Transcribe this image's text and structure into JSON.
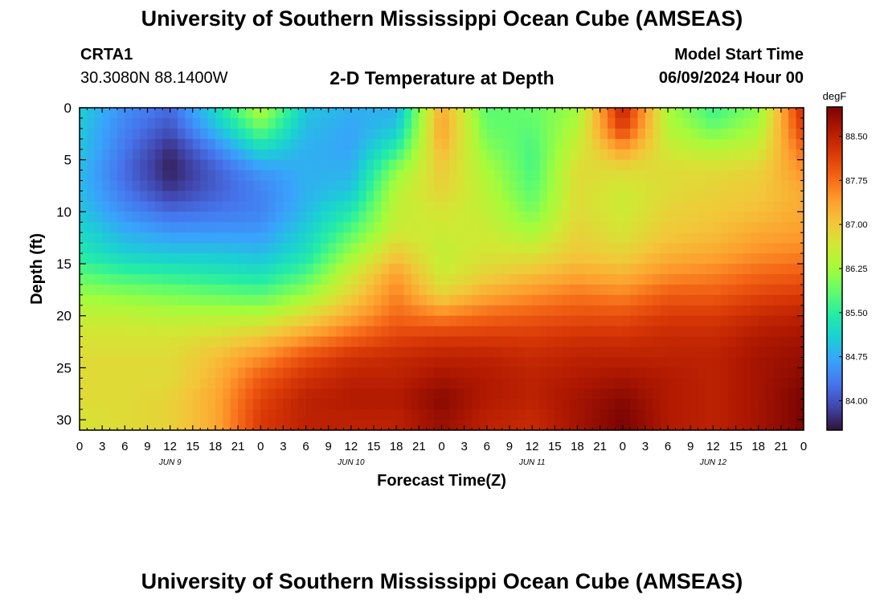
{
  "header": {
    "title": "University of Southern Mississippi Ocean Cube (AMSEAS)",
    "station": "CRTA1",
    "coordinates": "30.3080N  88.1400W",
    "plot_title": "2-D Temperature at Depth",
    "model_start_label": "Model Start Time",
    "model_start_value": "06/09/2024 Hour 00"
  },
  "footer": {
    "title": "University of Southern Mississippi Ocean Cube (AMSEAS)"
  },
  "chart_data": {
    "type": "heatmap",
    "title": "2-D Temperature at Depth",
    "xlabel": "Forecast Time(Z)",
    "ylabel": "Depth (ft)",
    "x_range_hours": [
      0,
      96
    ],
    "y_range_ft": [
      0,
      31
    ],
    "x_tick_labels": [
      "0",
      "3",
      "6",
      "9",
      "12",
      "15",
      "18",
      "21",
      "0",
      "3",
      "6",
      "9",
      "12",
      "15",
      "18",
      "21",
      "0",
      "3",
      "6",
      "9",
      "12",
      "15",
      "18",
      "21",
      "0",
      "3",
      "6",
      "9",
      "12",
      "15",
      "18",
      "21",
      "0"
    ],
    "y_ticks": [
      0,
      5,
      10,
      15,
      20,
      25,
      30
    ],
    "day_labels": [
      {
        "hour": 12,
        "label": "JUN 9"
      },
      {
        "hour": 36,
        "label": "JUN 10"
      },
      {
        "hour": 60,
        "label": "JUN 11"
      },
      {
        "hour": 84,
        "label": "JUN 12"
      }
    ],
    "colorbar": {
      "unit": "degF",
      "range": [
        83.5,
        89.0
      ],
      "ticks": [
        "84.00",
        "84.75",
        "85.50",
        "86.25",
        "87.00",
        "87.75",
        "88.50"
      ],
      "colors": [
        "#30123b",
        "#4145ab",
        "#4675ed",
        "#39a2fc",
        "#1bcfd4",
        "#24eca6",
        "#61fc6c",
        "#a4fc3b",
        "#d1e834",
        "#f3c63a",
        "#fe9b2d",
        "#f36315",
        "#d93806",
        "#b11901",
        "#7a0403"
      ]
    },
    "grid_depths_ft": [
      0,
      2,
      4,
      6,
      8,
      10,
      12,
      14,
      16,
      18,
      20,
      22,
      24,
      26,
      28,
      30
    ],
    "grid_hours": [
      0,
      6,
      12,
      18,
      24,
      30,
      36,
      42,
      48,
      54,
      60,
      66,
      72,
      78,
      84,
      90,
      96
    ],
    "temperature_degF": [
      [
        85.1,
        84.5,
        84.2,
        85.2,
        86.4,
        85.0,
        84.8,
        84.8,
        87.3,
        85.8,
        85.9,
        86.2,
        88.5,
        86.3,
        85.6,
        86.1,
        88.4
      ],
      [
        85.0,
        84.4,
        84.0,
        84.9,
        85.9,
        84.9,
        84.7,
        85.0,
        87.4,
        85.9,
        85.8,
        86.4,
        88.2,
        86.4,
        85.9,
        86.3,
        88.2
      ],
      [
        85.0,
        84.3,
        83.7,
        84.4,
        85.2,
        84.8,
        84.7,
        85.5,
        87.2,
        86.1,
        85.7,
        86.6,
        87.4,
        86.6,
        86.4,
        86.6,
        87.8
      ],
      [
        84.9,
        84.2,
        83.6,
        84.1,
        84.6,
        84.8,
        84.8,
        86.1,
        87.0,
        86.3,
        85.7,
        86.8,
        86.8,
        86.8,
        86.8,
        86.9,
        87.5
      ],
      [
        84.9,
        84.3,
        83.8,
        84.1,
        84.4,
        84.8,
        85.0,
        86.4,
        86.9,
        86.4,
        85.8,
        86.8,
        86.6,
        86.8,
        86.9,
        87.0,
        87.3
      ],
      [
        85.0,
        84.5,
        84.2,
        84.3,
        84.4,
        84.9,
        85.4,
        86.5,
        86.7,
        86.5,
        86.0,
        86.8,
        86.6,
        86.9,
        87.0,
        87.1,
        87.3
      ],
      [
        85.2,
        84.8,
        84.6,
        84.6,
        84.6,
        85.1,
        85.8,
        86.6,
        86.6,
        86.6,
        86.3,
        86.9,
        86.7,
        87.0,
        87.1,
        87.3,
        87.4
      ],
      [
        85.4,
        85.1,
        85.0,
        85.0,
        84.9,
        85.3,
        86.2,
        87.0,
        86.5,
        86.7,
        86.7,
        87.0,
        86.9,
        87.2,
        87.3,
        87.5,
        87.6
      ],
      [
        85.8,
        85.6,
        85.5,
        85.4,
        85.3,
        85.7,
        86.6,
        87.4,
        86.6,
        86.9,
        87.1,
        87.3,
        87.2,
        87.5,
        87.6,
        87.8,
        87.9
      ],
      [
        86.2,
        86.1,
        86.0,
        85.9,
        85.8,
        86.2,
        86.9,
        87.6,
        86.9,
        87.3,
        87.5,
        87.7,
        87.6,
        87.9,
        87.9,
        88.1,
        88.2
      ],
      [
        86.5,
        86.5,
        86.4,
        86.4,
        86.4,
        86.8,
        87.3,
        87.8,
        87.6,
        87.8,
        87.9,
        88.0,
        88.0,
        88.2,
        88.2,
        88.4,
        88.5
      ],
      [
        86.7,
        86.7,
        86.7,
        86.8,
        87.0,
        87.4,
        87.8,
        88.1,
        88.2,
        88.2,
        88.2,
        88.3,
        88.3,
        88.4,
        88.4,
        88.6,
        88.7
      ],
      [
        86.8,
        86.8,
        86.8,
        87.1,
        87.5,
        88.0,
        88.3,
        88.4,
        88.5,
        88.5,
        88.4,
        88.5,
        88.5,
        88.5,
        88.5,
        88.7,
        88.8
      ],
      [
        86.8,
        86.8,
        86.8,
        87.2,
        87.9,
        88.3,
        88.5,
        88.5,
        88.7,
        88.6,
        88.5,
        88.6,
        88.7,
        88.6,
        88.5,
        88.7,
        88.9
      ],
      [
        86.8,
        86.8,
        86.9,
        87.3,
        88.1,
        88.5,
        88.6,
        88.6,
        88.9,
        88.6,
        88.5,
        88.7,
        88.9,
        88.6,
        88.5,
        88.7,
        89.0
      ],
      [
        86.7,
        86.8,
        86.9,
        87.3,
        88.2,
        88.5,
        88.5,
        88.5,
        88.8,
        88.5,
        88.4,
        88.7,
        89.0,
        88.6,
        88.5,
        88.7,
        89.0
      ]
    ]
  }
}
